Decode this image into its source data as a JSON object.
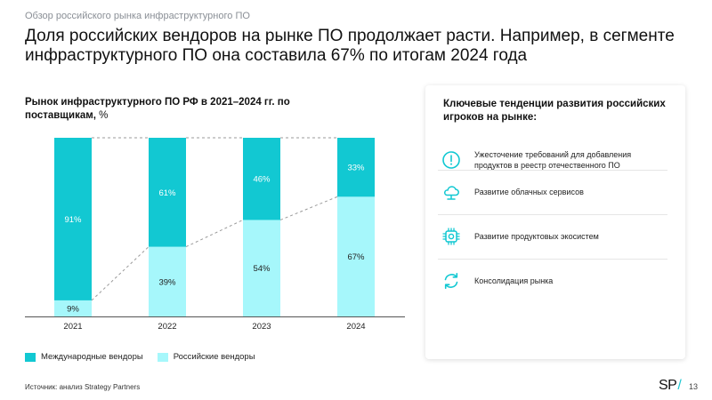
{
  "header": {
    "breadcrumb": "Обзор российского рынка инфраструктурного ПО",
    "title": "Доля российских вендоров на рынке ПО продолжает расти. Например, в сегменте инфраструктурного ПО она составила 67% по итогам 2024 года"
  },
  "chart_data": {
    "type": "bar",
    "stacked": true,
    "title": "Рынок инфраструктурного ПО РФ в 2021–2024 гг. по поставщикам,",
    "title_unit": "%",
    "categories": [
      "2021",
      "2022",
      "2023",
      "2024"
    ],
    "series": [
      {
        "name": "Российские вендоры",
        "values": [
          9,
          39,
          54,
          67
        ],
        "color": "#a6f7fb"
      },
      {
        "name": "Международные вендоры",
        "values": [
          91,
          61,
          46,
          33
        ],
        "color": "#12c8d2"
      }
    ],
    "value_suffix": "%",
    "ylim": [
      0,
      100
    ],
    "connector_lines": "dashed",
    "legend_position": "bottom-left",
    "grid": false
  },
  "legend": [
    {
      "label": "Международные вендоры",
      "color": "#12c8d2"
    },
    {
      "label": "Российские вендоры",
      "color": "#a6f7fb"
    }
  ],
  "source": "Источник: анализ Strategy Partners",
  "panel": {
    "title": "Ключевые тенденции развития российских игроков на рынке:",
    "items": [
      {
        "label": "Ужесточение требований для добавления продуктов в реестр отечественного ПО",
        "icon": "alert-circle-icon"
      },
      {
        "label": "Развитие облачных сервисов",
        "icon": "cloud-icon"
      },
      {
        "label": "Развитие продуктовых экосистем",
        "icon": "ecosystem-chip-icon"
      },
      {
        "label": "Консолидация рынка",
        "icon": "refresh-icon"
      }
    ],
    "icon_color": "#12c8d2"
  },
  "footer": {
    "logo_text": "SP",
    "logo_slash": "/",
    "page_number": "13"
  }
}
